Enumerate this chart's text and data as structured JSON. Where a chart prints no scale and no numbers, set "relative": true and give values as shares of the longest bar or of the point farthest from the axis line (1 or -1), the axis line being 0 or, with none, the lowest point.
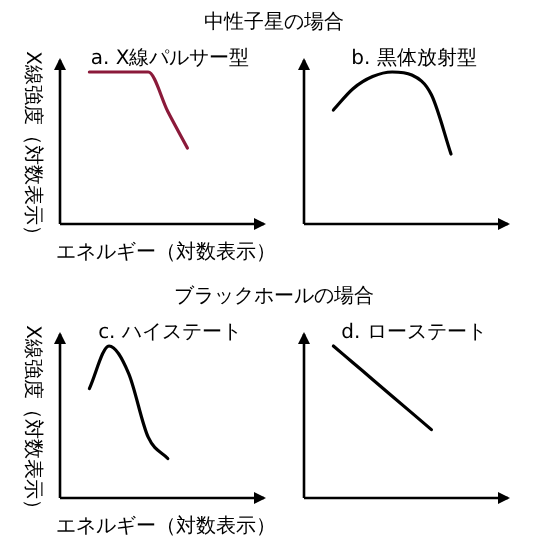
{
  "chart_data": [
    {
      "type": "line",
      "title": "a. X線パルサー型",
      "annotations": [
        "中性子星の場合"
      ],
      "xlabel": "エネルギー（対数表示）",
      "ylabel": "X線強度（対数表示）",
      "relative": true,
      "categories": [
        null,
        null,
        null,
        null,
        null,
        null,
        null,
        null,
        null,
        null
      ],
      "series": [
        {
          "color": "#8b1a3a",
          "values": [
            null,
            1,
            1,
            1,
            1,
            0.74,
            0.5,
            null,
            null,
            null
          ]
        }
      ]
    },
    {
      "type": "line",
      "title": "b. 黒体放射型",
      "relative": true,
      "categories": [
        null,
        null,
        null,
        null,
        null,
        null,
        null,
        null,
        null,
        null
      ],
      "series": [
        {
          "color": "#000000",
          "values": [
            null,
            0.75,
            0.89,
            0.97,
            1,
            0.98,
            0.85,
            0.46,
            null,
            null
          ]
        }
      ]
    },
    {
      "type": "line",
      "title": "c. ハイステート",
      "annotations": [
        "ブラックホールの場合"
      ],
      "xlabel": "エネルギー（対数表示）",
      "ylabel": "X線強度（対数表示）",
      "relative": true,
      "categories": [
        null,
        null,
        null,
        null,
        null,
        null,
        null,
        null,
        null,
        null
      ],
      "series": [
        {
          "color": "#000000",
          "values": [
            null,
            0.72,
            1,
            0.82,
            0.4,
            0.26,
            null,
            null,
            null,
            null
          ]
        }
      ]
    },
    {
      "type": "line",
      "title": "d. ローステート",
      "relative": true,
      "categories": [
        null,
        null,
        null,
        null,
        null,
        null,
        null,
        null,
        null,
        null
      ],
      "series": [
        {
          "color": "#000000",
          "values": [
            null,
            1,
            0.89,
            0.78,
            0.67,
            0.56,
            0.45,
            null,
            null,
            null
          ]
        }
      ]
    }
  ]
}
